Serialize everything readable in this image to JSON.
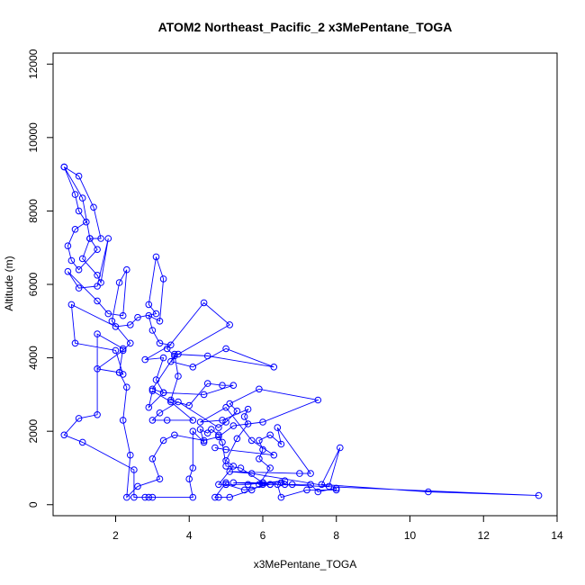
{
  "chart_data": {
    "type": "line",
    "title": "ATOM2 Northeast_Pacific_2 x3MePentane_TOGA",
    "xlabel": "x3MePentane_TOGA",
    "ylabel": "Altitude (m)",
    "xlim": [
      0.3,
      14.0
    ],
    "ylim": [
      -300,
      12300
    ],
    "xticks": [
      2,
      4,
      6,
      8,
      10,
      12,
      14
    ],
    "yticks": [
      0,
      2000,
      4000,
      6000,
      8000,
      10000,
      12000
    ],
    "xtick_labels": [
      "2",
      "4",
      "6",
      "8",
      "10",
      "12",
      "14"
    ],
    "ytick_labels": [
      "0",
      "2000",
      "4000",
      "6000",
      "8000",
      "10000",
      "12000"
    ],
    "grid": false,
    "legend": "none",
    "colors": {
      "series": "#0000ff",
      "axes": "#000000",
      "background": "#ffffff"
    },
    "marker": "open-circle",
    "series": [
      {
        "points": [
          [
            0.6,
            9200
          ],
          [
            1.0,
            8950
          ],
          [
            1.4,
            8100
          ],
          [
            1.6,
            7250
          ],
          [
            1.3,
            7250
          ],
          [
            1.5,
            6950
          ],
          [
            1.0,
            6400
          ],
          [
            0.8,
            6650
          ],
          [
            0.7,
            7050
          ],
          [
            0.9,
            7500
          ],
          [
            1.2,
            7700
          ],
          [
            1.0,
            8000
          ],
          [
            0.9,
            8450
          ],
          [
            0.6,
            9200
          ],
          [
            1.1,
            8350
          ],
          [
            1.3,
            7250
          ],
          [
            1.1,
            6700
          ],
          [
            1.5,
            6250
          ],
          [
            1.6,
            6050
          ],
          [
            1.8,
            7250
          ],
          [
            1.5,
            5950
          ],
          [
            1.0,
            5900
          ],
          [
            0.7,
            6350
          ],
          [
            1.5,
            5550
          ],
          [
            1.8,
            5200
          ],
          [
            2.2,
            5150
          ],
          [
            2.3,
            6400
          ],
          [
            2.1,
            6050
          ],
          [
            1.9,
            5000
          ],
          [
            2.4,
            4400
          ],
          [
            2.2,
            4200
          ],
          [
            1.5,
            3700
          ],
          [
            2.1,
            3600
          ],
          [
            2.2,
            3550
          ],
          [
            2.0,
            4200
          ],
          [
            0.9,
            4400
          ],
          [
            0.8,
            5450
          ],
          [
            2.0,
            4850
          ],
          [
            2.4,
            4900
          ],
          [
            2.6,
            5100
          ],
          [
            3.1,
            5200
          ],
          [
            2.9,
            5450
          ],
          [
            3.1,
            6750
          ],
          [
            3.3,
            6150
          ],
          [
            3.2,
            5000
          ],
          [
            2.9,
            5150
          ],
          [
            3.0,
            4750
          ],
          [
            3.2,
            4400
          ],
          [
            3.5,
            4350
          ],
          [
            2.8,
            3950
          ],
          [
            3.3,
            4000
          ],
          [
            3.1,
            3400
          ],
          [
            3.3,
            3050
          ],
          [
            3.0,
            3150
          ],
          [
            3.6,
            4050
          ],
          [
            3.4,
            4250
          ],
          [
            4.4,
            5500
          ],
          [
            5.1,
            4900
          ],
          [
            3.7,
            4100
          ],
          [
            3.5,
            3900
          ],
          [
            4.1,
            3750
          ],
          [
            5.0,
            4250
          ],
          [
            6.3,
            3750
          ],
          [
            4.5,
            4050
          ],
          [
            3.6,
            4100
          ],
          [
            3.7,
            3500
          ],
          [
            3.5,
            2850
          ],
          [
            4.0,
            2700
          ],
          [
            4.5,
            3300
          ],
          [
            4.9,
            3250
          ],
          [
            5.2,
            3250
          ],
          [
            4.4,
            3000
          ],
          [
            3.3,
            3050
          ],
          [
            2.9,
            2650
          ],
          [
            3.0,
            3100
          ],
          [
            3.5,
            2800
          ],
          [
            4.1,
            2300
          ],
          [
            3.4,
            2300
          ],
          [
            3.0,
            2300
          ],
          [
            3.2,
            2500
          ],
          [
            3.7,
            2800
          ],
          [
            4.8,
            2100
          ],
          [
            5.0,
            2250
          ],
          [
            5.3,
            2550
          ],
          [
            5.1,
            2750
          ],
          [
            5.9,
            3150
          ],
          [
            7.5,
            2850
          ],
          [
            6.0,
            2250
          ],
          [
            5.2,
            2150
          ],
          [
            4.8,
            1850
          ],
          [
            4.4,
            1750
          ],
          [
            3.6,
            1900
          ],
          [
            3.3,
            1750
          ],
          [
            3.0,
            1250
          ],
          [
            3.2,
            700
          ],
          [
            2.6,
            500
          ],
          [
            2.3,
            200
          ],
          [
            2.4,
            1350
          ],
          [
            2.2,
            2300
          ],
          [
            2.3,
            3200
          ],
          [
            2.1,
            3600
          ],
          [
            2.2,
            4250
          ],
          [
            1.5,
            4650
          ],
          [
            1.5,
            2450
          ],
          [
            1.0,
            2350
          ],
          [
            0.6,
            1900
          ],
          [
            1.1,
            1700
          ],
          [
            2.5,
            950
          ],
          [
            2.5,
            200
          ],
          [
            2.8,
            200
          ],
          [
            2.9,
            200
          ],
          [
            3.0,
            200
          ],
          [
            4.1,
            200
          ],
          [
            4.0,
            700
          ],
          [
            4.1,
            1000
          ],
          [
            4.1,
            2000
          ],
          [
            4.4,
            1700
          ],
          [
            4.3,
            2050
          ],
          [
            4.5,
            1950
          ],
          [
            4.6,
            2050
          ],
          [
            4.8,
            1900
          ],
          [
            4.9,
            1700
          ],
          [
            5.0,
            1050
          ],
          [
            5.4,
            1000
          ],
          [
            6.0,
            600
          ],
          [
            6.2,
            550
          ],
          [
            6.5,
            600
          ],
          [
            6.6,
            550
          ],
          [
            6.8,
            550
          ],
          [
            7.3,
            550
          ],
          [
            7.5,
            350
          ],
          [
            8.0,
            450
          ],
          [
            8.0,
            400
          ],
          [
            7.2,
            400
          ],
          [
            6.5,
            200
          ],
          [
            6.4,
            550
          ],
          [
            6.0,
            550
          ],
          [
            5.7,
            400
          ],
          [
            5.1,
            200
          ],
          [
            4.8,
            200
          ],
          [
            4.7,
            200
          ],
          [
            5.0,
            600
          ],
          [
            5.0,
            550
          ],
          [
            5.6,
            550
          ],
          [
            6.6,
            650
          ],
          [
            5.9,
            550
          ],
          [
            6.2,
            1000
          ],
          [
            5.9,
            1250
          ],
          [
            6.0,
            1500
          ],
          [
            5.9,
            1750
          ],
          [
            6.2,
            1900
          ],
          [
            6.5,
            1650
          ],
          [
            6.4,
            2100
          ],
          [
            7.3,
            850
          ],
          [
            7.0,
            850
          ],
          [
            5.1,
            900
          ],
          [
            5.7,
            850
          ],
          [
            7.8,
            500
          ],
          [
            8.1,
            1550
          ],
          [
            7.6,
            550
          ],
          [
            10.5,
            350
          ],
          [
            13.5,
            250
          ],
          [
            5.2,
            600
          ],
          [
            6.0,
            600
          ],
          [
            6.2,
            550
          ],
          [
            5.5,
            400
          ],
          [
            5.0,
            550
          ],
          [
            4.8,
            550
          ],
          [
            5.2,
            1050
          ],
          [
            5.0,
            1200
          ],
          [
            5.3,
            1800
          ],
          [
            5.6,
            2200
          ],
          [
            5.5,
            2400
          ],
          [
            5.6,
            2600
          ],
          [
            4.9,
            2300
          ],
          [
            4.3,
            2250
          ],
          [
            5.0,
            2650
          ],
          [
            5.7,
            1750
          ],
          [
            6.3,
            1350
          ],
          [
            5.0,
            1500
          ],
          [
            4.7,
            1550
          ]
        ]
      }
    ]
  }
}
